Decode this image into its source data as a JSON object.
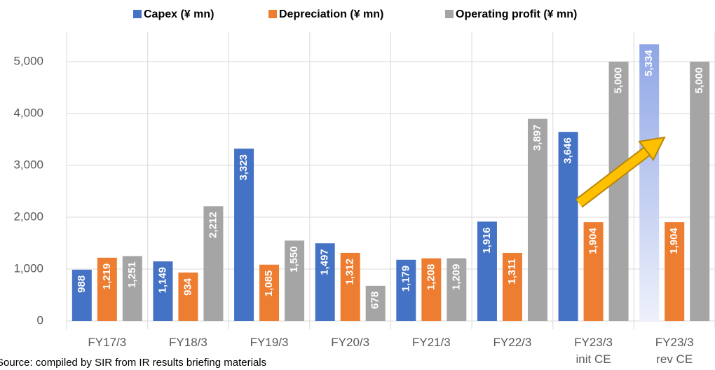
{
  "chart_data": {
    "type": "bar",
    "categories": [
      "FY17/3",
      "FY18/3",
      "FY19/3",
      "FY20/3",
      "FY21/3",
      "FY22/3",
      "FY23/3\ninit CE",
      "FY23/3\nrev CE"
    ],
    "series": [
      {
        "name": "Capex (¥ mn)",
        "color": "#4472c4",
        "values": [
          988,
          1149,
          3323,
          1497,
          1179,
          1916,
          3646,
          5334
        ],
        "value_labels": [
          "988",
          "1,149",
          "3,323",
          "1,497",
          "1,179",
          "1,916",
          "3,646",
          "5,334"
        ]
      },
      {
        "name": "Depreciation (¥ mn)",
        "color": "#ed7d31",
        "values": [
          1219,
          934,
          1085,
          1312,
          1208,
          1311,
          1904,
          1904
        ],
        "value_labels": [
          "1,219",
          "934",
          "1,085",
          "1,312",
          "1,208",
          "1,311",
          "1,904",
          "1,904"
        ]
      },
      {
        "name": "Operating profit (¥ mn)",
        "color": "#a5a5a5",
        "values": [
          1251,
          2212,
          1550,
          678,
          1209,
          3897,
          5000,
          5000
        ],
        "value_labels": [
          "1,251",
          "2,212",
          "1,550",
          "678",
          "1,209",
          "3,897",
          "5,000",
          "5,000"
        ]
      }
    ],
    "ylim": [
      0,
      5500
    ],
    "yticks": [
      0,
      {
        "value": 1000,
        "label": "1,000"
      },
      {
        "value": 2000,
        "label": "2,000"
      },
      {
        "value": 3000,
        "label": "3,000"
      },
      {
        "value": 4000,
        "label": "4,000"
      },
      {
        "value": 5000,
        "label": "5,000"
      }
    ],
    "grid": true,
    "legend": "top",
    "source": "Source: compiled by SIR from IR results briefing materials"
  }
}
